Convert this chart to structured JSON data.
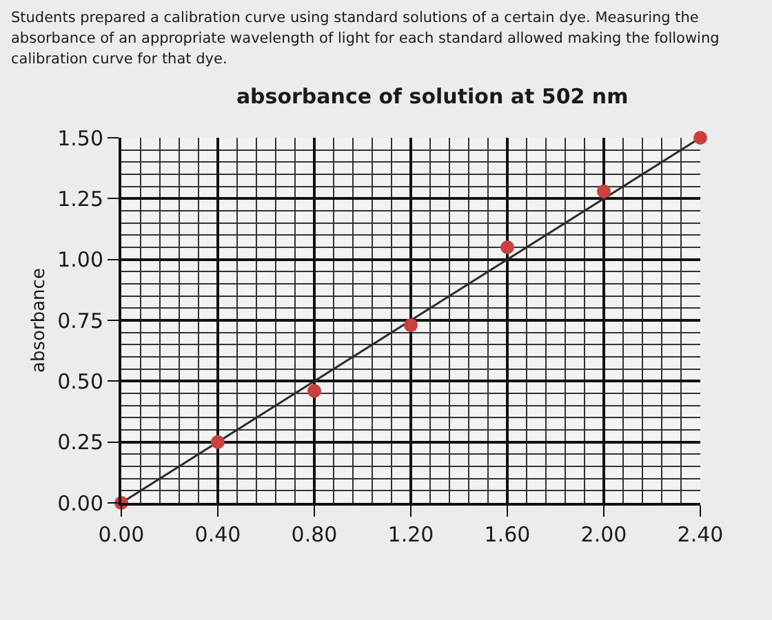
{
  "chart_data": {
    "type": "scatter",
    "title": "absorbance of solution at 502 nm",
    "subtitle": "Students prepared a calibration curve using standard solutions of a certain dye. Measuring the absorbance of an appropriate wavelength of light for each standard allowed making the following calibration curve for that dye.",
    "ylabel": "absorbance",
    "x": [
      0,
      0.4,
      0.8,
      1.2,
      1.6,
      2.0,
      2.4
    ],
    "series": [
      {
        "color": "#c9403f",
        "values": [
          0,
          0.25,
          0.46,
          0.73,
          1.05,
          1.28,
          1.5
        ]
      },
      {
        "type": "line",
        "marker": "none",
        "color": "#2a2a2a",
        "x": [
          0,
          2.4
        ],
        "values": [
          0,
          1.5
        ]
      }
    ],
    "marker": "circle",
    "xlim": [
      0,
      2.4
    ],
    "xticks": [
      {
        "value": 0,
        "label": "0.00"
      },
      {
        "value": 0.4,
        "label": "0.40"
      },
      {
        "value": 0.8,
        "label": "0.80"
      },
      {
        "value": 1.2,
        "label": "1.20"
      },
      {
        "value": 1.6,
        "label": "1.60"
      },
      {
        "value": 2.0,
        "label": "2.00"
      },
      {
        "value": 2.4,
        "label": "2.40"
      }
    ],
    "ylim": [
      0,
      1.5
    ],
    "yticks": [
      {
        "value": 0,
        "label": "0.00"
      },
      {
        "value": 0.25,
        "label": "0.25"
      },
      {
        "value": 0.5,
        "label": "0.50"
      },
      {
        "value": 0.75,
        "label": "0.75"
      },
      {
        "value": 1.0,
        "label": "1.00"
      },
      {
        "value": 1.25,
        "label": "1.25"
      },
      {
        "value": 1.5,
        "label": "1.50"
      }
    ],
    "grid": true
  }
}
